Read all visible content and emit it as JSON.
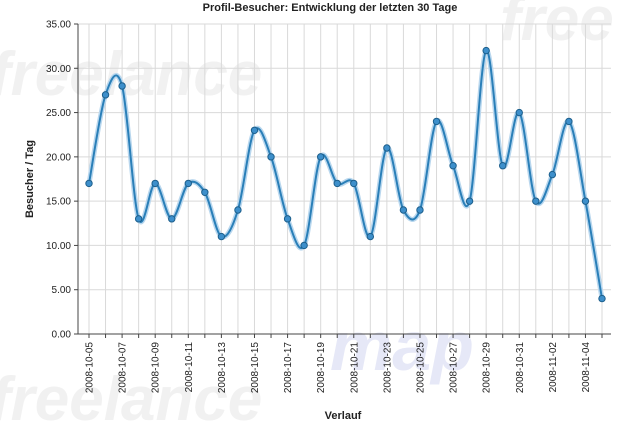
{
  "chart_data": {
    "type": "line",
    "title": "Profil-Besucher: Entwicklung der letzten 30 Tage",
    "xlabel": "Verlauf",
    "ylabel": "Besucher / Tag",
    "ylim": [
      0,
      35
    ],
    "y_ticks": [
      "0.00",
      "5.00",
      "10.00",
      "15.00",
      "20.00",
      "25.00",
      "30.00",
      "35.00"
    ],
    "x": [
      "2008-10-05",
      "2008-10-06",
      "2008-10-07",
      "2008-10-08",
      "2008-10-09",
      "2008-10-10",
      "2008-10-11",
      "2008-10-12",
      "2008-10-13",
      "2008-10-14",
      "2008-10-15",
      "2008-10-16",
      "2008-10-17",
      "2008-10-18",
      "2008-10-19",
      "2008-10-20",
      "2008-10-21",
      "2008-10-22",
      "2008-10-23",
      "2008-10-24",
      "2008-10-25",
      "2008-10-26",
      "2008-10-27",
      "2008-10-28",
      "2008-10-29",
      "2008-10-30",
      "2008-10-31",
      "2008-11-01",
      "2008-11-02",
      "2008-11-03",
      "2008-11-04",
      "2008-11-05"
    ],
    "x_tick_labels": [
      "2008-10-05",
      "2008-10-07",
      "2008-10-09",
      "2008-10-11",
      "2008-10-13",
      "2008-10-15",
      "2008-10-17",
      "2008-10-19",
      "2008-10-21",
      "2008-10-23",
      "2008-10-25",
      "2008-10-27",
      "2008-10-29",
      "2008-10-31",
      "2008-11-02",
      "2008-11-04"
    ],
    "series": [
      {
        "values": [
          17,
          27,
          28,
          13,
          17,
          13,
          17,
          16,
          11,
          14,
          23,
          20,
          13,
          10,
          20,
          17,
          17,
          11,
          21,
          14,
          14,
          24,
          19,
          15,
          32,
          19,
          25,
          15,
          18,
          24,
          15,
          4
        ]
      }
    ],
    "grid": true,
    "colors": {
      "line": "#2a7fb8",
      "marker_fill": "#3d8fcb",
      "marker_stroke": "#1d5f8c",
      "grid": "#d9d9d9"
    }
  },
  "watermark": {
    "text1": "freelance",
    "text2": "map",
    "text3": "free"
  }
}
